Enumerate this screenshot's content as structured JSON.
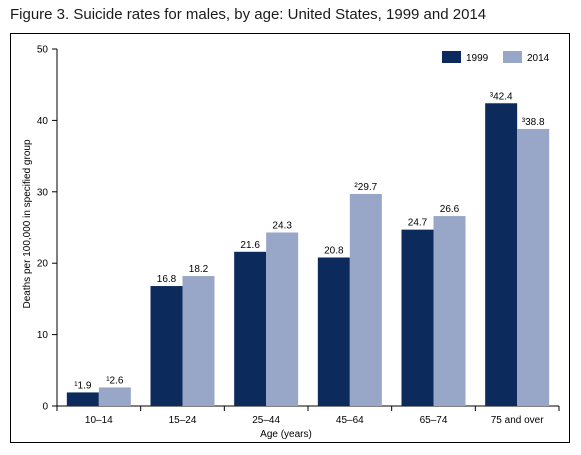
{
  "figure": {
    "title": "Figure 3. Suicide rates for males, by age: United States, 1999 and 2014"
  },
  "chart_data": {
    "type": "bar",
    "title": "Figure 3. Suicide rates for males, by age: United States, 1999 and 2014",
    "xlabel": "Age (years)",
    "ylabel": "Deaths per 100,000 in specified group",
    "ylim": [
      0,
      50
    ],
    "yticks": [
      "0",
      "10",
      "20",
      "30",
      "40",
      "50"
    ],
    "categories": [
      "10–14",
      "15–24",
      "25–44",
      "45–64",
      "65–74",
      "75 and over"
    ],
    "series": [
      {
        "name": "1999",
        "color": "#0c2a5b",
        "values": [
          1.9,
          16.8,
          21.6,
          20.8,
          24.7,
          42.4
        ],
        "labels": [
          "¹1.9",
          "16.8",
          "21.6",
          "20.8",
          "24.7",
          "³42.4"
        ]
      },
      {
        "name": "2014",
        "color": "#98a6c8",
        "values": [
          2.6,
          18.2,
          24.3,
          29.7,
          26.6,
          38.8
        ],
        "labels": [
          "¹2.6",
          "18.2",
          "24.3",
          "²29.7",
          "26.6",
          "³38.8"
        ]
      }
    ],
    "legend": "top-right",
    "grid": false
  }
}
